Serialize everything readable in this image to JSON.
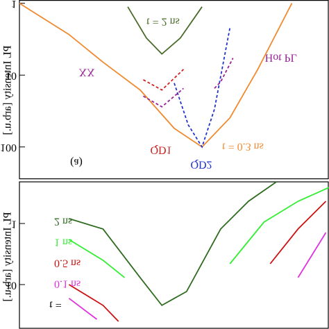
{
  "chart_data": [
    {
      "type": "line",
      "ylabel": "PL Intensity [arb.u.]",
      "log_y": true,
      "ylim": [
        0.9,
        280
      ],
      "xlim": [
        0,
        100
      ],
      "yticks": [
        1,
        10,
        100
      ],
      "annotations": [
        "t = 2 ns",
        "XX",
        "Hot PL",
        "(a)",
        "QD1",
        "QD2",
        "t = 0.3 ns"
      ],
      "series": [
        {
          "name": "t = 0.3 ns",
          "color": "#f08a30",
          "dash": false,
          "x": [
            0,
            16,
            27,
            39,
            50,
            59,
            68,
            77,
            88
          ],
          "values": [
            1,
            2.72,
            6.6,
            16.1,
            55,
            100,
            39.3,
            8.3,
            1
          ]
        },
        {
          "name": "t = 2 ns",
          "color": "#4a6b2a",
          "dash": false,
          "x": [
            35,
            41,
            46,
            52,
            59
          ],
          "values": [
            1.12,
            3.04,
            5.08,
            3.04,
            1.12
          ]
        },
        {
          "name": "QD2",
          "color": "#2233cc",
          "dash": true,
          "x": [
            50,
            54.5,
            59,
            63,
            68
          ],
          "values": [
            12.9,
            49,
            100,
            29.7,
            2.18
          ]
        },
        {
          "name": "QD1",
          "color": "#cc2222",
          "dash": true,
          "x": [
            40,
            46,
            53
          ],
          "values": [
            11.6,
            16.1,
            8.3
          ]
        },
        {
          "name": "XX",
          "color": "#992299",
          "dash": true,
          "x": [
            40,
            46,
            53
          ],
          "values": [
            19.6,
            27.6,
            15.3
          ]
        },
        {
          "name": "Hot PL",
          "color": "#992299",
          "dash": true,
          "x": [
            63,
            65,
            69
          ],
          "values": [
            15.3,
            12.4,
            5.8
          ]
        }
      ]
    },
    {
      "type": "line",
      "ylabel": "PL Intensity [arb.u.]",
      "log_y": true,
      "ylim": [
        0.208,
        53.4
      ],
      "xlim": [
        0,
        100
      ],
      "yticks": [
        1,
        10
      ],
      "annotations": [
        "t ="
      ],
      "series": [
        {
          "name": "2 ns",
          "color": "#2e6b1e",
          "dash": false,
          "x": [
            16,
            27,
            39,
            46,
            54,
            65,
            74,
            83
          ],
          "values": [
            0.833,
            1.23,
            7.69,
            21.9,
            13.0,
            1.23,
            0.433,
            0.208
          ]
        },
        {
          "name": "1 ns",
          "color": "#33ee33",
          "dash": false,
          "x": [
            16,
            27,
            34,
            50,
            68,
            79,
            90,
            100
          ],
          "values": [
            1.83,
            4.0,
            7.69,
            null,
            4.56,
            0.95,
            0.433,
            0.257
          ]
        },
        {
          "name": "0.5 ns",
          "color": "#cc1111",
          "dash": false,
          "x": [
            16,
            27,
            32,
            60,
            81,
            90,
            99
          ],
          "values": [
            10,
            21.9,
            40,
            null,
            4.56,
            1.23,
            0.433
          ]
        },
        {
          "name": "0.1 ns",
          "color": "#dd33dd",
          "dash": false,
          "x": [
            16,
            25,
            60,
            90,
            99
          ],
          "values": [
            16.8,
            37,
            null,
            7.69,
            1.41
          ]
        }
      ]
    }
  ]
}
